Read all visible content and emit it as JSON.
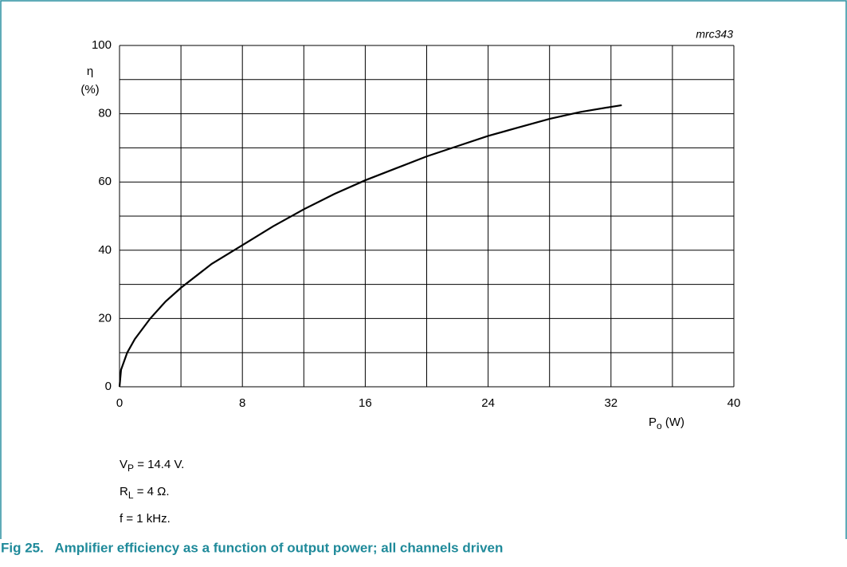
{
  "chart_data": {
    "type": "line",
    "id_label": "mrc343",
    "y_label": {
      "symbol": "η",
      "unit": "(%)"
    },
    "x_label": {
      "main": "P",
      "sub": "o",
      "rest": " (W)"
    },
    "x": [
      0,
      0.1,
      0.5,
      1,
      1.5,
      2,
      3,
      4,
      6,
      8,
      10,
      12,
      14,
      16,
      18,
      20,
      22,
      24,
      26,
      28,
      30,
      32,
      32.7
    ],
    "series": [
      {
        "name": "efficiency",
        "color": "#000000",
        "values": [
          0,
          5,
          10,
          14,
          17,
          20,
          25,
          29,
          36,
          41.5,
          47,
          52,
          56.5,
          60.5,
          64,
          67.5,
          70.5,
          73.5,
          76,
          78.5,
          80.5,
          82,
          82.5
        ]
      }
    ],
    "xlim": [
      0,
      40
    ],
    "xticks": [
      0,
      8,
      16,
      24,
      32,
      40
    ],
    "ylim": [
      0,
      100
    ],
    "yticks": [
      0,
      20,
      40,
      60,
      80,
      100
    ],
    "xgrid": [
      0,
      4,
      8,
      12,
      16,
      20,
      24,
      28,
      32,
      36,
      40
    ],
    "ygrid": [
      0,
      10,
      20,
      30,
      40,
      50,
      60,
      70,
      80,
      90,
      100
    ],
    "notes": [
      {
        "main": "V",
        "sub": "P",
        "rest": " = 14.4 V."
      },
      {
        "main": "R",
        "sub": "L",
        "rest": " = 4 Ω."
      },
      {
        "main": "f = 1 kHz.",
        "sub": "",
        "rest": ""
      }
    ],
    "caption": "Fig 25.   Amplifier efficiency as a function of output power; all channels driven"
  }
}
